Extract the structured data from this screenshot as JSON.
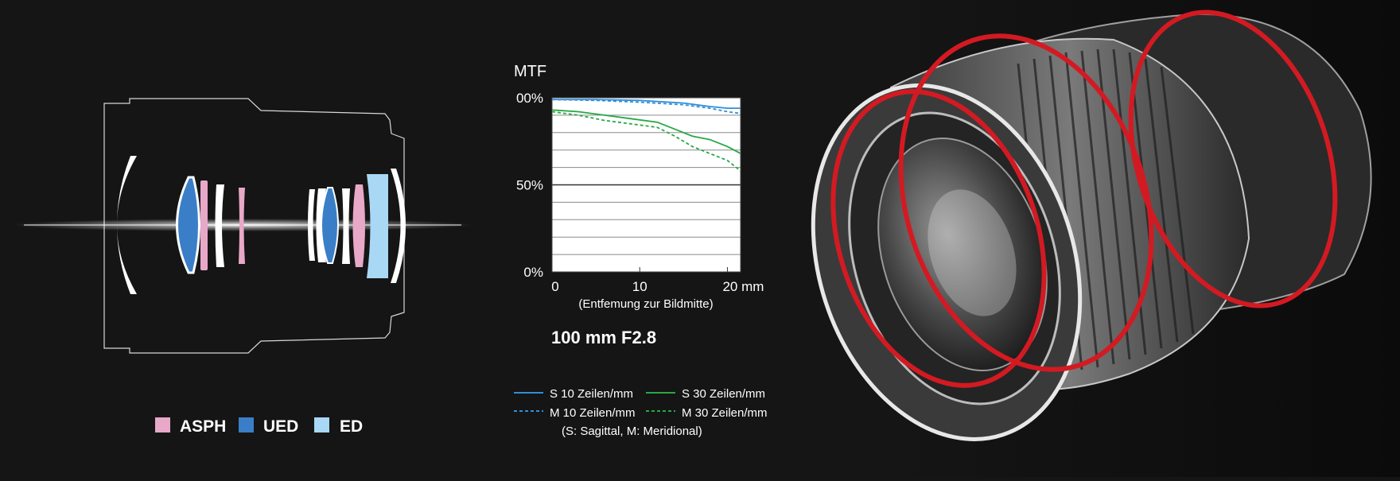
{
  "lens_legend": [
    {
      "label": "ASPH",
      "color": "#e8a8c8"
    },
    {
      "label": "UED",
      "color": "#3a7ec8"
    },
    {
      "label": "ED",
      "color": "#a8d8f4"
    }
  ],
  "chart_data": {
    "type": "line",
    "title": "MTF",
    "subtitle": "100 mm F2.8",
    "xlabel": "(Entfemung zur Bildmitte)",
    "ylabel": "",
    "xlim": [
      0,
      21.5
    ],
    "ylim": [
      0,
      100
    ],
    "x_ticks": [
      "0",
      "10",
      "20 mm"
    ],
    "x_tick_values": [
      0,
      10,
      20
    ],
    "y_ticks": [
      "0%",
      "50%",
      "100%"
    ],
    "y_tick_values": [
      0,
      50,
      100
    ],
    "y_tick_display": [
      "0%",
      "50%",
      "00%"
    ],
    "grid": true,
    "legend_note": "(S: Sagittal, M: Meridional)",
    "series": [
      {
        "name": "S 10 Zeilen/mm",
        "color": "#2f8fd8",
        "dash": false,
        "x": [
          0,
          5,
          10,
          15,
          18,
          20,
          21.5
        ],
        "y": [
          99,
          99,
          98.5,
          97,
          95,
          94,
          94
        ]
      },
      {
        "name": "M 10 Zeilen/mm",
        "color": "#2f8fd8",
        "dash": true,
        "x": [
          0,
          5,
          10,
          15,
          18,
          20,
          21.5
        ],
        "y": [
          99,
          98.5,
          97.5,
          96,
          94,
          92,
          91
        ]
      },
      {
        "name": "S 30 Zeilen/mm",
        "color": "#27a845",
        "dash": false,
        "x": [
          0,
          3,
          6,
          9,
          12,
          14,
          16,
          18,
          20,
          21.5
        ],
        "y": [
          93,
          92,
          90,
          88,
          86,
          82,
          78,
          76,
          72,
          68
        ]
      },
      {
        "name": "M 30 Zeilen/mm",
        "color": "#27a845",
        "dash": true,
        "x": [
          0,
          3,
          6,
          9,
          12,
          14,
          16,
          18,
          20,
          21.5
        ],
        "y": [
          92,
          90,
          87,
          85,
          83,
          78,
          72,
          68,
          64,
          58
        ]
      }
    ]
  }
}
